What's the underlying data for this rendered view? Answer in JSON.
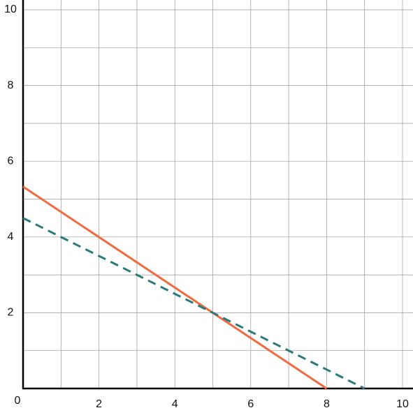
{
  "chart_data": {
    "type": "line",
    "xlim": [
      0,
      10
    ],
    "ylim": [
      0,
      10
    ],
    "xticks": [
      0,
      2,
      4,
      6,
      8,
      10
    ],
    "yticks": [
      2,
      4,
      6,
      8,
      10
    ],
    "xminor": [
      1,
      3,
      5,
      7,
      9
    ],
    "yminor": [
      1,
      3,
      5,
      7,
      9
    ],
    "grid": true,
    "series": [
      {
        "color": "#f26a3c",
        "dash": false,
        "x": [
          0,
          8
        ],
        "values": [
          5.33,
          0
        ]
      },
      {
        "color": "#2a7a7a",
        "dash": true,
        "x": [
          0,
          9
        ],
        "values": [
          4.5,
          0
        ]
      }
    ]
  }
}
